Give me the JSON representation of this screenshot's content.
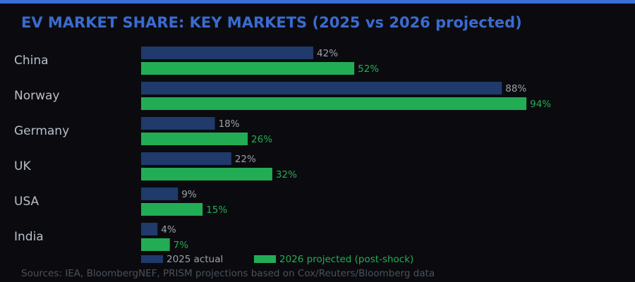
{
  "title": "EV MARKET SHARE: KEY MARKETS (2025 vs 2026 projected)",
  "source": "Sources: IEA, BloombergNEF, PRISM projections based on Cox/Reuters/Bloomberg data",
  "colors": {
    "accent": "#3a6fd8",
    "actual": "#1f3a6b",
    "projected": "#22ad55",
    "actual_label": "#9aa0aa",
    "projected_label": "#22ad55"
  },
  "chart_data": {
    "type": "bar",
    "orientation": "horizontal",
    "title": "EV MARKET SHARE: KEY MARKETS (2025 vs 2026 projected)",
    "categories": [
      "China",
      "Norway",
      "Germany",
      "UK",
      "USA",
      "India"
    ],
    "series": [
      {
        "name": "2025 actual",
        "values": [
          42,
          88,
          18,
          22,
          9,
          4
        ],
        "labels": [
          "42%",
          "88%",
          "18%",
          "22%",
          "9%",
          "4%"
        ]
      },
      {
        "name": "2026 projected (post-shock)",
        "values": [
          52,
          94,
          26,
          32,
          15,
          7
        ],
        "labels": [
          "52%",
          "94%",
          "26%",
          "32%",
          "15%",
          "7%"
        ]
      }
    ],
    "unit": "%",
    "xlim": [
      0,
      100
    ],
    "grid": false,
    "legend": "bottom"
  }
}
